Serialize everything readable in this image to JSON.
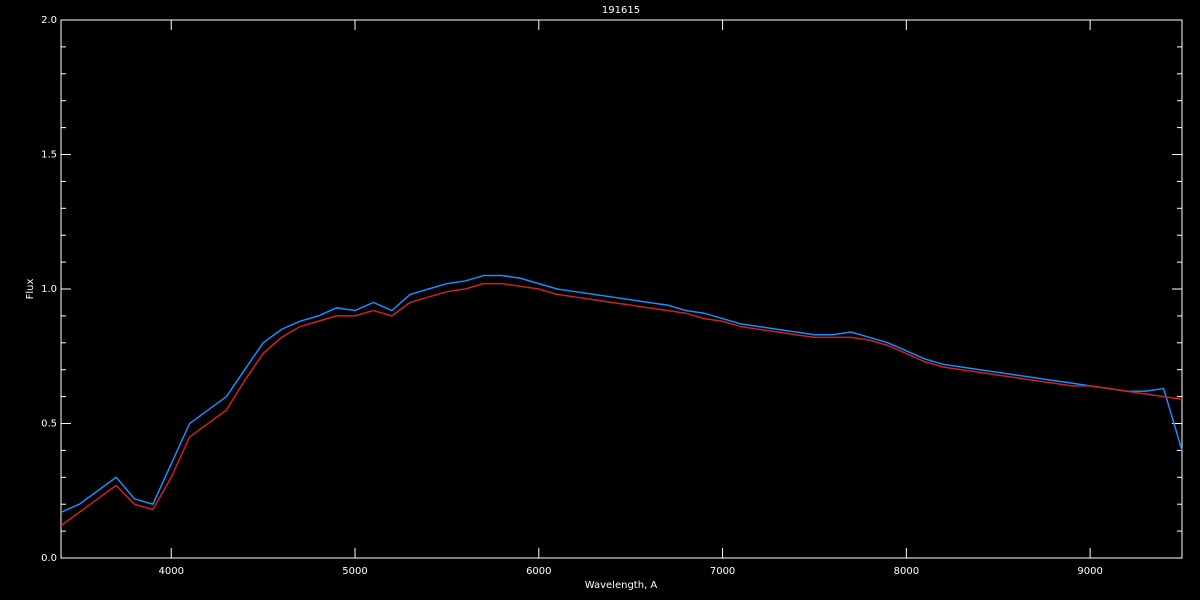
{
  "chart_data": {
    "type": "line",
    "title": "191615",
    "xlabel": "Wavelength, A",
    "ylabel": "Flux",
    "x": [
      3400,
      3500,
      3600,
      3700,
      3800,
      3900,
      4000,
      4100,
      4200,
      4300,
      4400,
      4500,
      4600,
      4700,
      4800,
      4900,
      5000,
      5100,
      5200,
      5300,
      5400,
      5500,
      5600,
      5700,
      5800,
      5900,
      6000,
      6100,
      6200,
      6300,
      6400,
      6500,
      6600,
      6700,
      6800,
      6900,
      7000,
      7100,
      7200,
      7300,
      7400,
      7500,
      7600,
      7700,
      7800,
      7900,
      8000,
      8100,
      8200,
      8300,
      8400,
      8500,
      8600,
      8700,
      8800,
      8900,
      9000,
      9100,
      9200,
      9300,
      9400,
      9500
    ],
    "series": [
      {
        "color": "#1a8cff",
        "values": [
          0.17,
          0.2,
          0.25,
          0.3,
          0.22,
          0.2,
          0.35,
          0.5,
          0.55,
          0.6,
          0.7,
          0.8,
          0.85,
          0.88,
          0.9,
          0.93,
          0.92,
          0.95,
          0.92,
          0.98,
          1.0,
          1.02,
          1.03,
          1.05,
          1.05,
          1.04,
          1.02,
          1.0,
          0.99,
          0.98,
          0.97,
          0.96,
          0.95,
          0.94,
          0.92,
          0.91,
          0.89,
          0.87,
          0.86,
          0.85,
          0.84,
          0.83,
          0.83,
          0.84,
          0.82,
          0.8,
          0.77,
          0.74,
          0.72,
          0.71,
          0.7,
          0.69,
          0.68,
          0.67,
          0.66,
          0.65,
          0.64,
          0.63,
          0.62,
          0.62,
          0.63,
          0.4
        ]
      },
      {
        "color": "#cc2222",
        "values": [
          0.12,
          0.17,
          0.22,
          0.27,
          0.2,
          0.18,
          0.3,
          0.45,
          0.5,
          0.55,
          0.66,
          0.76,
          0.82,
          0.86,
          0.88,
          0.9,
          0.9,
          0.92,
          0.9,
          0.95,
          0.97,
          0.99,
          1.0,
          1.02,
          1.02,
          1.01,
          1.0,
          0.98,
          0.97,
          0.96,
          0.95,
          0.94,
          0.93,
          0.92,
          0.91,
          0.89,
          0.88,
          0.86,
          0.85,
          0.84,
          0.83,
          0.82,
          0.82,
          0.82,
          0.81,
          0.79,
          0.76,
          0.73,
          0.71,
          0.7,
          0.69,
          0.68,
          0.67,
          0.66,
          0.65,
          0.64,
          0.64,
          0.63,
          0.62,
          0.61,
          0.6,
          0.59
        ]
      }
    ],
    "xlim": [
      3400,
      9500
    ],
    "ylim": [
      0,
      2
    ],
    "xticks": [
      4000,
      5000,
      6000,
      7000,
      8000,
      9000
    ],
    "yticks": [
      {
        "value": 0,
        "label": "0.0"
      },
      0.5,
      {
        "value": 1,
        "label": "1.0"
      },
      1.5,
      {
        "value": 2,
        "label": "2.0"
      }
    ]
  }
}
